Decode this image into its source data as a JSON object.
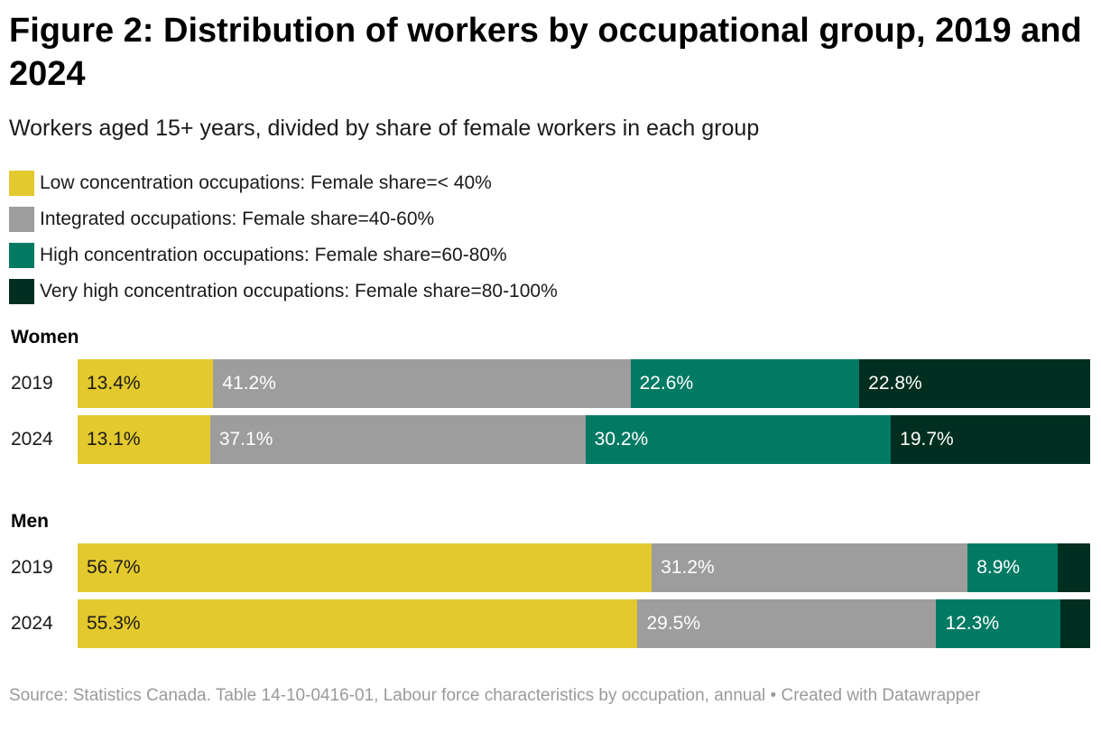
{
  "chart_data": {
    "type": "bar",
    "orientation": "horizontal",
    "stacked": true,
    "title": "Figure 2: Distribution of workers by occupational group, 2019 and 2024",
    "subtitle": "Workers aged 15+ years, divided by share of female workers in each group",
    "xlim": [
      0,
      100
    ],
    "legend": [
      {
        "name": "Low concentration occupations: Female share=< 40%",
        "color": "#e3c92d"
      },
      {
        "name": "Integrated occupations: Female share=40-60%",
        "color": "#9d9d9d"
      },
      {
        "name": "High concentration occupations: Female share=60-80%",
        "color": "#007a63"
      },
      {
        "name": "Very high concentration occupations: Female share=80-100%",
        "color": "#002e21"
      }
    ],
    "groups": [
      {
        "name": "Women",
        "rows": [
          {
            "label": "2019",
            "values": [
              13.4,
              41.2,
              22.6,
              22.8
            ],
            "labels": [
              "13.4%",
              "41.2%",
              "22.6%",
              "22.8%"
            ]
          },
          {
            "label": "2024",
            "values": [
              13.1,
              37.1,
              30.2,
              19.7
            ],
            "labels": [
              "13.1%",
              "37.1%",
              "30.2%",
              "19.7%"
            ]
          }
        ]
      },
      {
        "name": "Men",
        "rows": [
          {
            "label": "2019",
            "values": [
              56.7,
              31.2,
              8.9,
              3.2
            ],
            "labels": [
              "56.7%",
              "31.2%",
              "8.9%",
              ""
            ]
          },
          {
            "label": "2024",
            "values": [
              55.3,
              29.5,
              12.3,
              2.9
            ],
            "labels": [
              "55.3%",
              "29.5%",
              "12.3%",
              ""
            ]
          }
        ]
      }
    ]
  },
  "footer": {
    "source_line": "Source: Statistics Canada. Table 14-10-0416-01, Labour force characteristics by occupation, annual",
    "separator": " • ",
    "credit": "Created with Datawrapper"
  }
}
